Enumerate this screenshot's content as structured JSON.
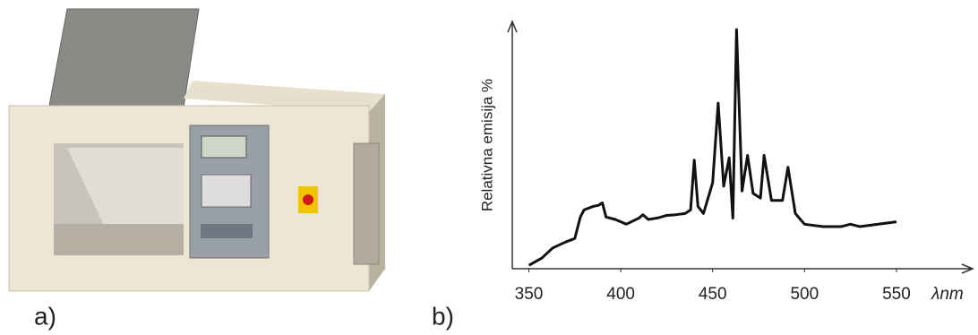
{
  "panels": {
    "a": "a)",
    "b": "b)"
  },
  "chart_data": {
    "type": "line",
    "y_label": "Relativna emisija %",
    "x_label": "λnm",
    "xlim": [
      340,
      590
    ],
    "xticks": [
      350,
      400,
      450,
      500,
      550
    ],
    "ylim": [
      -0.75,
      103
    ],
    "color": "#111111",
    "x": [
      350,
      357,
      363,
      370,
      375,
      378,
      380,
      385,
      388,
      390,
      392,
      397,
      403,
      410,
      412,
      415,
      420,
      425,
      430,
      435,
      438,
      440,
      442,
      445,
      450,
      453,
      456,
      459,
      461,
      463,
      466,
      469,
      472,
      476,
      478,
      482,
      488,
      491,
      495,
      500,
      510,
      520,
      525,
      530,
      550
    ],
    "series": [
      {
        "values": [
          0.7,
          3.7,
          8,
          10.5,
          12,
          21,
          24,
          25.5,
          26,
          27,
          21,
          20,
          18,
          20.6,
          22,
          20,
          20.6,
          21.7,
          22,
          22.5,
          24,
          45,
          25.5,
          22.5,
          35.5,
          69,
          34,
          46,
          20.6,
          100,
          32,
          47,
          31,
          29,
          47,
          28,
          28,
          42,
          22.5,
          18,
          17,
          17,
          18,
          17,
          19
        ]
      }
    ]
  }
}
